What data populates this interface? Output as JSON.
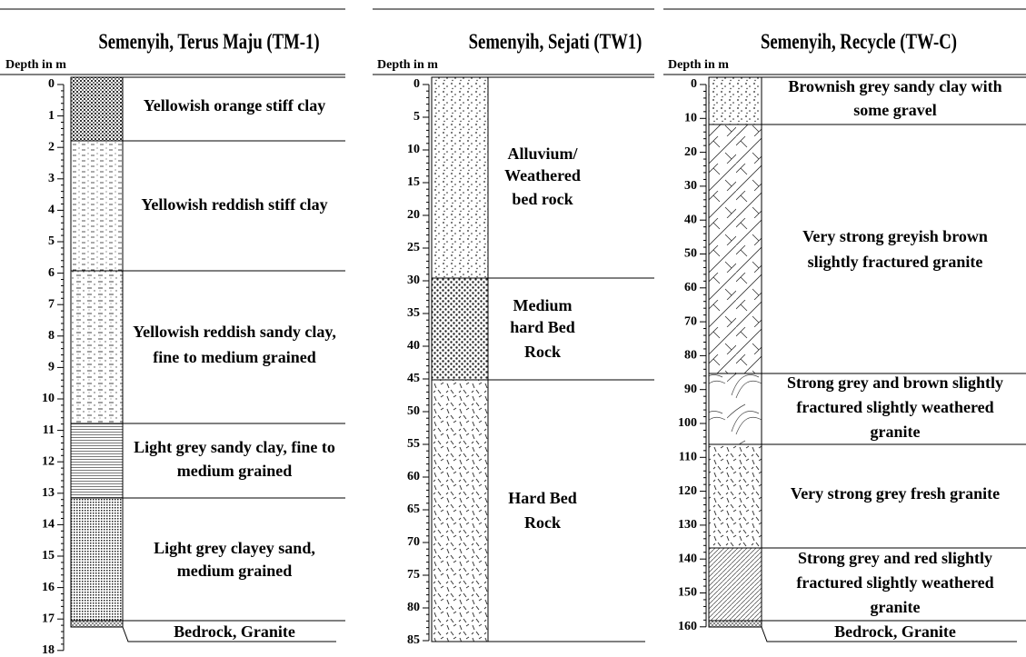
{
  "columns": [
    {
      "title": "Semenyih, Terus Maju (TM-1)",
      "depth_label": "Depth in m",
      "ticks": [
        0,
        1,
        2,
        3,
        4,
        5,
        6,
        7,
        8,
        9,
        10,
        11,
        12,
        13,
        14,
        15,
        16,
        17,
        18
      ],
      "layers": [
        {
          "lines": [
            "Yellowish orange stiff clay"
          ]
        },
        {
          "lines": [
            "Yellowish reddish stiff clay"
          ]
        },
        {
          "lines": [
            "Yellowish reddish sandy clay,",
            "fine to medium grained"
          ]
        },
        {
          "lines": [
            "Light grey sandy clay, fine to",
            "medium grained"
          ]
        },
        {
          "lines": [
            "Light grey clayey sand,",
            "medium grained"
          ]
        },
        {
          "lines": [
            "Bedrock, Granite"
          ]
        }
      ]
    },
    {
      "title": "Semenyih, Sejati (TW1)",
      "depth_label": "Depth in m",
      "ticks": [
        0,
        5,
        10,
        15,
        20,
        25,
        30,
        35,
        40,
        45,
        50,
        55,
        60,
        65,
        70,
        75,
        80,
        85
      ],
      "layers": [
        {
          "lines": [
            "Alluvium/",
            "Weathered",
            "bed rock"
          ]
        },
        {
          "lines": [
            "Medium",
            "hard Bed",
            "Rock"
          ]
        },
        {
          "lines": [
            "Hard Bed",
            "Rock"
          ]
        }
      ]
    },
    {
      "title": "Semenyih, Recycle  (TW-C)",
      "depth_label": "Depth in m",
      "ticks": [
        0,
        10,
        20,
        30,
        40,
        50,
        60,
        70,
        80,
        90,
        100,
        110,
        120,
        130,
        140,
        150,
        160
      ],
      "layers": [
        {
          "lines": [
            "Brownish grey sandy clay with",
            "some gravel"
          ]
        },
        {
          "lines": [
            "Very strong greyish brown",
            "slightly fractured   granite"
          ]
        },
        {
          "lines": [
            "Strong grey and brown slightly",
            "fractured slightly weathered",
            "granite"
          ]
        },
        {
          "lines": [
            "Very strong grey fresh  granite"
          ]
        },
        {
          "lines": [
            "Strong grey and red slightly",
            "fractured slightly weathered",
            "granite"
          ]
        },
        {
          "lines": [
            "Bedrock, Granite"
          ]
        }
      ]
    }
  ]
}
